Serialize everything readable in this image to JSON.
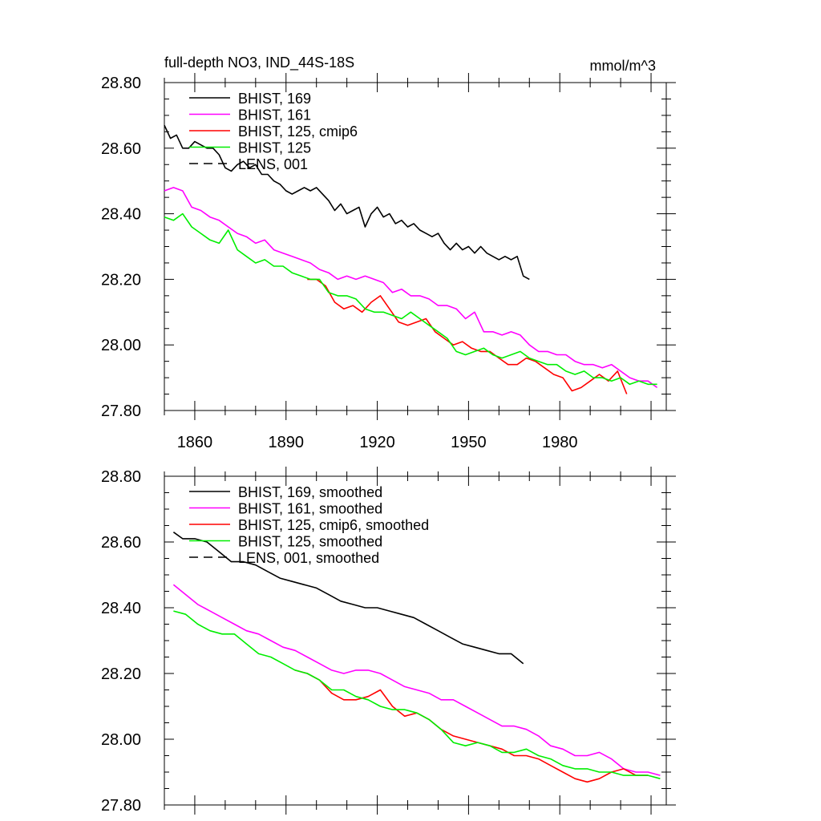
{
  "figure": {
    "title": "full-depth NO3, IND_44S-18S",
    "units": "mmol/m^3"
  },
  "colors": {
    "BHIST_169": "#000000",
    "BHIST_161": "#ff00ff",
    "BHIST_125_cmip6": "#ff0000",
    "BHIST_125": "#00ee00",
    "LENS_001": "#000000"
  },
  "chart_data": [
    {
      "type": "line",
      "panel": "top",
      "title": "full-depth NO3, IND_44S-18S",
      "units_label": "mmol/m^3",
      "xlim": [
        1850,
        2015
      ],
      "ylim": [
        27.8,
        28.8
      ],
      "xticks": [
        1860,
        1890,
        1920,
        1950,
        1980
      ],
      "xtick_labels": [
        "1860",
        "1890",
        "1920",
        "1950",
        "1980"
      ],
      "yticks": [
        27.8,
        28.0,
        28.2,
        28.4,
        28.6,
        28.8
      ],
      "ytick_labels": [
        "27.80",
        "28.00",
        "28.20",
        "28.40",
        "28.60",
        "28.80"
      ],
      "legend_position": "top-left",
      "series": [
        {
          "name": "BHIST, 169",
          "color_key": "BHIST_169",
          "dash": "solid",
          "x": [
            1850,
            1852,
            1854,
            1856,
            1858,
            1860,
            1862,
            1864,
            1866,
            1868,
            1870,
            1872,
            1874,
            1876,
            1878,
            1880,
            1882,
            1884,
            1886,
            1888,
            1890,
            1892,
            1894,
            1896,
            1898,
            1900,
            1902,
            1904,
            1906,
            1908,
            1910,
            1912,
            1914,
            1916,
            1918,
            1920,
            1922,
            1924,
            1926,
            1928,
            1930,
            1932,
            1934,
            1936,
            1938,
            1940,
            1942,
            1944,
            1946,
            1948,
            1950,
            1952,
            1954,
            1956,
            1958,
            1960,
            1962,
            1964,
            1966,
            1968,
            1970
          ],
          "values": [
            28.67,
            28.63,
            28.64,
            28.6,
            28.6,
            28.62,
            28.61,
            28.6,
            28.6,
            28.58,
            28.54,
            28.53,
            28.55,
            28.56,
            28.54,
            28.55,
            28.52,
            28.52,
            28.5,
            28.49,
            28.47,
            28.46,
            28.47,
            28.48,
            28.47,
            28.48,
            28.46,
            28.44,
            28.41,
            28.43,
            28.4,
            28.41,
            28.42,
            28.36,
            28.4,
            28.42,
            28.39,
            28.4,
            28.37,
            28.38,
            28.36,
            28.37,
            28.35,
            28.34,
            28.33,
            28.34,
            28.31,
            28.29,
            28.31,
            28.29,
            28.3,
            28.28,
            28.3,
            28.28,
            28.27,
            28.26,
            28.27,
            28.26,
            28.27,
            28.21,
            28.2
          ]
        },
        {
          "name": "BHIST, 161",
          "color_key": "BHIST_161",
          "dash": "solid",
          "x": [
            1850,
            1853,
            1856,
            1859,
            1862,
            1865,
            1868,
            1871,
            1874,
            1877,
            1880,
            1883,
            1886,
            1889,
            1892,
            1895,
            1898,
            1901,
            1904,
            1907,
            1910,
            1913,
            1916,
            1919,
            1922,
            1925,
            1928,
            1931,
            1934,
            1937,
            1940,
            1943,
            1946,
            1949,
            1952,
            1955,
            1958,
            1961,
            1964,
            1967,
            1970,
            1973,
            1976,
            1979,
            1982,
            1985,
            1988,
            1991,
            1994,
            1997,
            2000,
            2003,
            2006,
            2009,
            2012
          ],
          "values": [
            28.47,
            28.48,
            28.47,
            28.42,
            28.41,
            28.39,
            28.38,
            28.36,
            28.34,
            28.33,
            28.31,
            28.32,
            28.29,
            28.28,
            28.27,
            28.26,
            28.25,
            28.23,
            28.22,
            28.2,
            28.21,
            28.2,
            28.21,
            28.2,
            28.19,
            28.16,
            28.17,
            28.15,
            28.15,
            28.14,
            28.12,
            28.12,
            28.11,
            28.08,
            28.1,
            28.04,
            28.04,
            28.03,
            28.04,
            28.03,
            28.0,
            27.98,
            27.98,
            27.97,
            27.97,
            27.95,
            27.94,
            27.94,
            27.93,
            27.94,
            27.92,
            27.9,
            27.89,
            27.89,
            27.87
          ]
        },
        {
          "name": "BHIST, 125, cmip6",
          "color_key": "BHIST_125_cmip6",
          "dash": "solid",
          "x": [
            1897,
            1900,
            1903,
            1906,
            1909,
            1912,
            1915,
            1918,
            1921,
            1924,
            1927,
            1930,
            1933,
            1936,
            1939,
            1942,
            1945,
            1948,
            1951,
            1954,
            1957,
            1960,
            1963,
            1966,
            1969,
            1972,
            1975,
            1978,
            1981,
            1984,
            1987,
            1990,
            1993,
            1996,
            1999,
            2002
          ],
          "values": [
            28.2,
            28.2,
            28.18,
            28.13,
            28.11,
            28.12,
            28.1,
            28.13,
            28.15,
            28.11,
            28.07,
            28.06,
            28.07,
            28.08,
            28.04,
            28.02,
            28.0,
            28.01,
            27.99,
            27.98,
            27.98,
            27.96,
            27.94,
            27.94,
            27.96,
            27.95,
            27.93,
            27.91,
            27.9,
            27.86,
            27.87,
            27.89,
            27.91,
            27.89,
            27.92,
            27.85
          ]
        },
        {
          "name": "BHIST, 125",
          "color_key": "BHIST_125",
          "dash": "solid",
          "x": [
            1850,
            1853,
            1856,
            1859,
            1862,
            1865,
            1868,
            1871,
            1874,
            1877,
            1880,
            1883,
            1886,
            1889,
            1892,
            1895,
            1898,
            1901,
            1904,
            1907,
            1910,
            1913,
            1916,
            1919,
            1922,
            1925,
            1928,
            1931,
            1934,
            1937,
            1940,
            1943,
            1946,
            1949,
            1952,
            1955,
            1958,
            1961,
            1964,
            1967,
            1970,
            1973,
            1976,
            1979,
            1982,
            1985,
            1988,
            1991,
            1994,
            1997,
            2000,
            2003,
            2006,
            2009,
            2012
          ],
          "values": [
            28.39,
            28.38,
            28.4,
            28.36,
            28.34,
            28.32,
            28.31,
            28.35,
            28.29,
            28.27,
            28.25,
            28.26,
            28.24,
            28.24,
            28.22,
            28.21,
            28.2,
            28.2,
            28.16,
            28.15,
            28.15,
            28.14,
            28.11,
            28.1,
            28.1,
            28.09,
            28.08,
            28.1,
            28.08,
            28.06,
            28.04,
            28.02,
            27.98,
            27.97,
            27.98,
            27.99,
            27.97,
            27.96,
            27.97,
            27.98,
            27.96,
            27.95,
            27.94,
            27.94,
            27.92,
            27.91,
            27.92,
            27.9,
            27.9,
            27.89,
            27.9,
            27.88,
            27.89,
            27.88,
            27.88
          ]
        },
        {
          "name": "LENS, 001",
          "color_key": "LENS_001",
          "dash": "dashed",
          "x": [],
          "values": []
        }
      ]
    },
    {
      "type": "line",
      "panel": "bottom",
      "xlim": [
        1850,
        2015
      ],
      "ylim": [
        27.8,
        28.8
      ],
      "yticks": [
        27.8,
        28.0,
        28.2,
        28.4,
        28.6,
        28.8
      ],
      "ytick_labels": [
        "27.80",
        "28.00",
        "28.20",
        "28.40",
        "28.60",
        "28.80"
      ],
      "legend_position": "top-left",
      "series": [
        {
          "name": "BHIST, 169, smoothed",
          "color_key": "BHIST_169",
          "dash": "solid",
          "x": [
            1853,
            1856,
            1860,
            1864,
            1868,
            1872,
            1876,
            1880,
            1884,
            1888,
            1892,
            1896,
            1900,
            1904,
            1908,
            1912,
            1916,
            1920,
            1924,
            1928,
            1932,
            1936,
            1940,
            1944,
            1948,
            1952,
            1956,
            1960,
            1964,
            1968
          ],
          "values": [
            28.63,
            28.61,
            28.61,
            28.6,
            28.57,
            28.54,
            28.54,
            28.53,
            28.51,
            28.49,
            28.48,
            28.47,
            28.46,
            28.44,
            28.42,
            28.41,
            28.4,
            28.4,
            28.39,
            28.38,
            28.37,
            28.35,
            28.33,
            28.31,
            28.29,
            28.28,
            28.27,
            28.26,
            28.26,
            28.23
          ]
        },
        {
          "name": "BHIST, 161, smoothed",
          "color_key": "BHIST_161",
          "dash": "solid",
          "x": [
            1853,
            1857,
            1861,
            1865,
            1869,
            1873,
            1877,
            1881,
            1885,
            1889,
            1893,
            1897,
            1901,
            1905,
            1909,
            1913,
            1917,
            1921,
            1925,
            1929,
            1933,
            1937,
            1941,
            1945,
            1949,
            1953,
            1957,
            1961,
            1965,
            1969,
            1973,
            1977,
            1981,
            1985,
            1989,
            1993,
            1997,
            2001,
            2005,
            2009,
            2013
          ],
          "values": [
            28.47,
            28.44,
            28.41,
            28.39,
            28.37,
            28.35,
            28.33,
            28.32,
            28.3,
            28.28,
            28.27,
            28.25,
            28.23,
            28.21,
            28.2,
            28.21,
            28.21,
            28.2,
            28.18,
            28.16,
            28.15,
            28.14,
            28.12,
            28.12,
            28.1,
            28.08,
            28.06,
            28.04,
            28.04,
            28.03,
            28.01,
            27.98,
            27.97,
            27.95,
            27.95,
            27.96,
            27.94,
            27.91,
            27.9,
            27.9,
            27.89
          ]
        },
        {
          "name": "BHIST, 125, cmip6, smoothed",
          "color_key": "BHIST_125_cmip6",
          "dash": "solid",
          "x": [
            1893,
            1897,
            1901,
            1905,
            1909,
            1913,
            1917,
            1921,
            1925,
            1929,
            1933,
            1937,
            1941,
            1945,
            1949,
            1953,
            1957,
            1961,
            1965,
            1969,
            1973,
            1977,
            1981,
            1985,
            1989,
            1993,
            1997,
            2001,
            2005,
            2009
          ],
          "values": [
            28.21,
            28.2,
            28.18,
            28.14,
            28.12,
            28.12,
            28.13,
            28.15,
            28.1,
            28.07,
            28.08,
            28.06,
            28.03,
            28.01,
            28.0,
            27.99,
            27.98,
            27.97,
            27.95,
            27.95,
            27.94,
            27.92,
            27.9,
            27.88,
            27.87,
            27.88,
            27.9,
            27.91,
            27.89,
            27.89
          ]
        },
        {
          "name": "BHIST, 125, smoothed",
          "color_key": "BHIST_125",
          "dash": "solid",
          "x": [
            1853,
            1857,
            1861,
            1865,
            1869,
            1873,
            1877,
            1881,
            1885,
            1889,
            1893,
            1897,
            1901,
            1905,
            1909,
            1913,
            1917,
            1921,
            1925,
            1929,
            1933,
            1937,
            1941,
            1945,
            1949,
            1953,
            1957,
            1961,
            1965,
            1969,
            1973,
            1977,
            1981,
            1985,
            1989,
            1993,
            1997,
            2001,
            2005,
            2009,
            2013
          ],
          "values": [
            28.39,
            28.38,
            28.35,
            28.33,
            28.32,
            28.32,
            28.29,
            28.26,
            28.25,
            28.23,
            28.21,
            28.2,
            28.18,
            28.15,
            28.15,
            28.13,
            28.12,
            28.1,
            28.09,
            28.09,
            28.08,
            28.06,
            28.03,
            27.99,
            27.98,
            27.99,
            27.98,
            27.96,
            27.96,
            27.97,
            27.95,
            27.94,
            27.92,
            27.91,
            27.91,
            27.9,
            27.9,
            27.89,
            27.89,
            27.89,
            27.88
          ]
        },
        {
          "name": "LENS, 001, smoothed",
          "color_key": "LENS_001",
          "dash": "dashed",
          "x": [],
          "values": []
        }
      ]
    }
  ]
}
